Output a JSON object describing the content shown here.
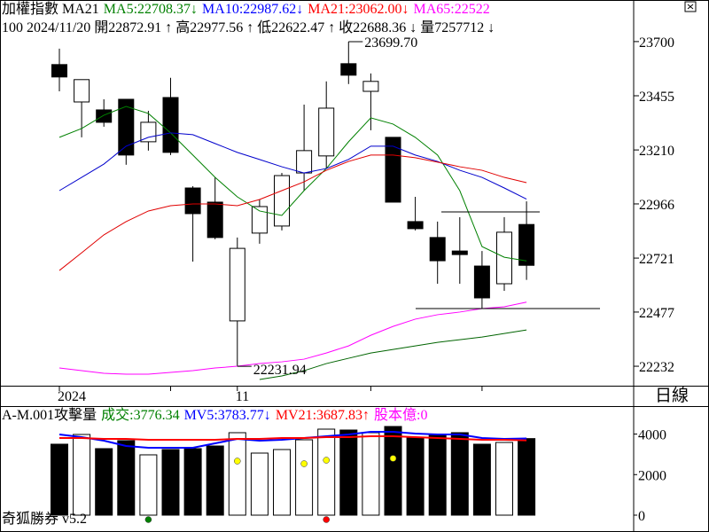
{
  "header": {
    "lines": [
      [
        {
          "text": "加權指數 MA21",
          "color": "#000000"
        },
        {
          "text": "MA5:22708.37↓",
          "color": "#008000"
        },
        {
          "text": "MA10:22987.62↓",
          "color": "#0000ff"
        },
        {
          "text": "MA21:23062.00↓",
          "color": "#ff0000"
        },
        {
          "text": "MA65:22522",
          "color": "#ff00ff"
        }
      ],
      [
        {
          "text": "100 2024/11/20 開22872.91 ↑ 高22977.56 ↑ 低22622.47 ↑ 收22688.36 ↓ 量7257712 ↓",
          "color": "#000000"
        }
      ]
    ]
  },
  "period_label": "日線",
  "footer": "奇狐勝券 v5.2",
  "chart_data": [
    {
      "type": "candlestick",
      "categories": [
        "2024",
        null,
        null,
        null,
        null,
        null,
        null,
        null,
        "11",
        null,
        null,
        null,
        null,
        null,
        null,
        null,
        null,
        null,
        null,
        null,
        null,
        null
      ],
      "open": [
        23596,
        23427,
        23391,
        23439,
        23247,
        23447,
        23038,
        22974,
        22437,
        22834,
        22866,
        23106,
        23183,
        23600,
        23475,
        23267,
        22886,
        22814,
        22753,
        22685,
        22605,
        22872.91
      ],
      "high": [
        23668,
        23528,
        23439,
        23439,
        23387,
        23536,
        23046,
        23086,
        22814,
        22986,
        23106,
        23415,
        23520,
        23699.7,
        23556,
        23267,
        22998,
        22886,
        22906,
        22753,
        22906,
        22977.56
      ],
      "low": [
        23475,
        23267,
        23315,
        23143,
        23207,
        23187,
        22705,
        22806,
        22231.94,
        22786,
        22846,
        23026,
        23126,
        23508,
        23299,
        22974,
        22846,
        22605,
        22605,
        22493,
        22573,
        22622.47
      ],
      "close": [
        23540,
        23528,
        23335,
        23187,
        23335,
        23199,
        22922,
        22814,
        22765,
        22954,
        23094,
        23207,
        23399,
        23548,
        23520,
        22974,
        22854,
        22709,
        22737,
        22541,
        22838,
        22688.36
      ],
      "series": [
        {
          "color": "#008000",
          "values": [
            23267,
            23307,
            23367,
            23407,
            23375,
            23287,
            23187,
            23086,
            22998,
            22934,
            22914,
            23026,
            23126,
            23247,
            23355,
            23327,
            23267,
            23187,
            23026,
            22773,
            22725,
            22708.37
          ]
        },
        {
          "color": "#0000cc",
          "values": [
            23026,
            23086,
            23146,
            23227,
            23267,
            23287,
            23279,
            23239,
            23199,
            23167,
            23134,
            23106,
            23126,
            23167,
            23227,
            23227,
            23187,
            23158,
            23118,
            23086,
            23038,
            22987.62
          ]
        },
        {
          "color": "#e00000",
          "values": [
            22665,
            22745,
            22826,
            22886,
            22934,
            22958,
            22966,
            22966,
            22958,
            22986,
            23026,
            23066,
            23118,
            23158,
            23187,
            23187,
            23175,
            23155,
            23134,
            23118,
            23086,
            23062
          ]
        },
        {
          "color": "#ff00ff",
          "values": [
            22224,
            22212,
            22200,
            22196,
            22196,
            22204,
            22212,
            22224,
            22232,
            22244,
            22252,
            22264,
            22292,
            22324,
            22372,
            22412,
            22445,
            22465,
            22477,
            22493,
            22501,
            22522
          ]
        },
        {
          "color": "#006400",
          "values": [
            null,
            null,
            null,
            null,
            null,
            null,
            null,
            null,
            null,
            22172,
            22188,
            22212,
            22244,
            22268,
            22292,
            22308,
            22324,
            22340,
            22352,
            22364,
            22380,
            22396
          ]
        }
      ],
      "annotations": [
        {
          "value": 23699.7,
          "label": "23699.70"
        },
        {
          "value": 22231.94,
          "label": "22231.94"
        }
      ],
      "reference_lines": [
        22930,
        22493
      ],
      "ylim": [
        22144,
        23888
      ],
      "yticks": [
        23700,
        23455,
        23210,
        22966,
        22721,
        22477,
        22232
      ]
    },
    {
      "type": "bar",
      "header": [
        {
          "text": "A-M.001攻擊量",
          "color": "#000000"
        },
        {
          "text": "成交:3776.34",
          "color": "#008000"
        },
        {
          "text": "MV5:3783.77↓",
          "color": "#0000ff"
        },
        {
          "text": "MV21:3687.83↑",
          "color": "#ff0000"
        },
        {
          "text": "股本億:0",
          "color": "#ff00ff"
        }
      ],
      "values": [
        3500,
        3980,
        3281,
        3675,
        2975,
        3237,
        3281,
        3412,
        4068,
        3062,
        3237,
        3718,
        4243,
        4199,
        4068,
        4374,
        3806,
        3980,
        4068,
        3500,
        3587,
        3776.34
      ],
      "series": [
        {
          "color": "#0000ff",
          "values": [
            3981,
            3850,
            3675,
            3412,
            3325,
            3325,
            3325,
            3543,
            3762,
            3675,
            3718,
            3806,
            3893,
            3981,
            4112,
            4112,
            4024,
            3981,
            3981,
            3806,
            3762,
            3783.77
          ]
        },
        {
          "color": "#ff0000",
          "values": [
            3806,
            3806,
            3762,
            3762,
            3718,
            3718,
            3718,
            3718,
            3762,
            3762,
            3806,
            3806,
            3850,
            3850,
            3893,
            3893,
            3850,
            3806,
            3762,
            3718,
            3718,
            3687.83
          ]
        }
      ],
      "ylim": [
        0,
        5380
      ],
      "yticks": [
        4000,
        2000,
        0
      ]
    }
  ]
}
